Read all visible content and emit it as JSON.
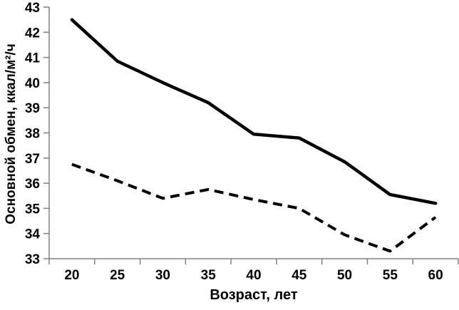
{
  "figure": {
    "background": "#ffffff",
    "axis_color": "#808080",
    "series_color": "#000000"
  },
  "chart_data": {
    "type": "line",
    "title": "",
    "xlabel": "Возраст, лет",
    "ylabel": "Основной обмен, ккал/м²/ч",
    "x": [
      20,
      25,
      30,
      35,
      40,
      45,
      50,
      55,
      60
    ],
    "y_ticks": [
      33,
      34,
      35,
      36,
      37,
      38,
      39,
      40,
      41,
      42,
      43
    ],
    "ylim": [
      33,
      43
    ],
    "grid": false,
    "legend": "none",
    "series": [
      {
        "name": "upper-solid-line",
        "style": "solid",
        "values": [
          42.5,
          40.85,
          40.0,
          39.2,
          37.95,
          37.8,
          36.85,
          35.55,
          35.2
        ]
      },
      {
        "name": "lower-dashed-line",
        "style": "dashed",
        "values": [
          36.75,
          36.1,
          35.4,
          35.75,
          35.35,
          35.0,
          33.95,
          33.3,
          34.65
        ]
      }
    ]
  }
}
